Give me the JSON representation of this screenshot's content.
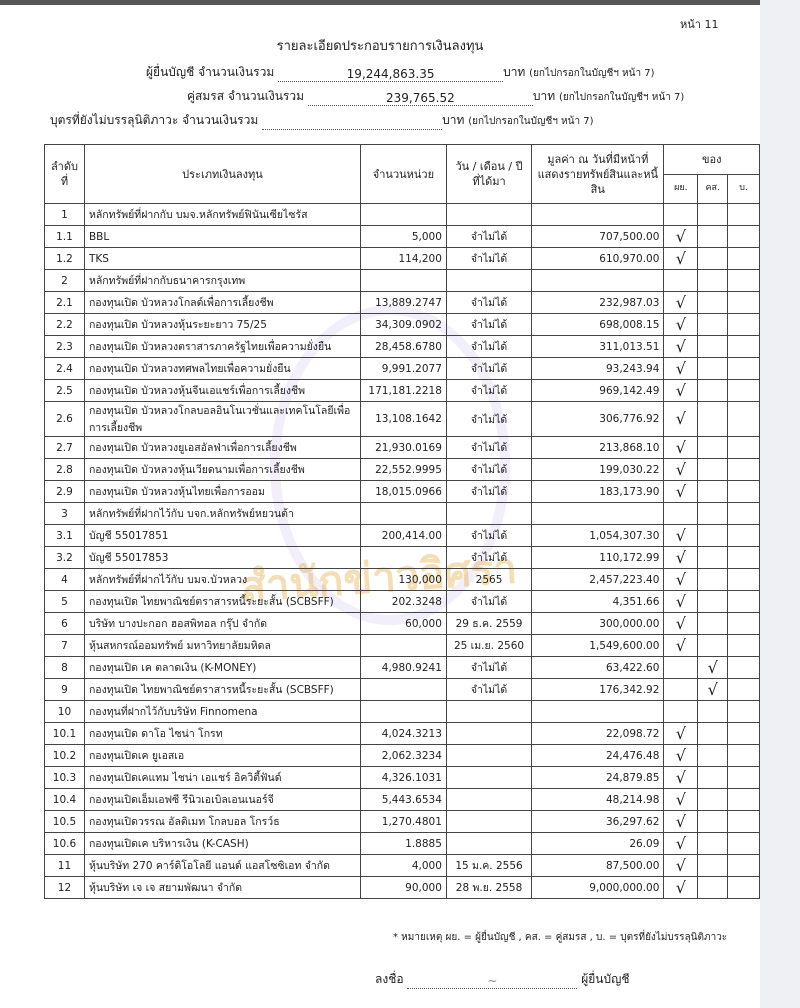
{
  "page_number": "หน้า 11",
  "title": "รายละเอียดประกอบรายการเงินลงทุน",
  "summary": [
    {
      "label": "ผู้ยื่นบัญชี  จำนวนเงินรวม",
      "value": "19,244,863.35",
      "unit": "บาท",
      "note": "(ยกไปกรอกในบัญชีฯ หน้า 7)"
    },
    {
      "label": "คู่สมรส  จำนวนเงินรวม",
      "value": "239,765.52",
      "unit": "บาท",
      "note": "(ยกไปกรอกในบัญชีฯ หน้า 7)"
    },
    {
      "label": "บุตรที่ยังไม่บรรลุนิติภาวะ  จำนวนเงินรวม",
      "value": "",
      "unit": "บาท",
      "note": "(ยกไปกรอกในบัญชีฯ หน้า 7)"
    }
  ],
  "headers": {
    "no": "ลำดับที่",
    "type": "ประเภทเงินลงทุน",
    "units": "จำนวนหน่วย",
    "date": "วัน / เดือน / ปี ที่ได้มา",
    "value": "มูลค่า ณ วันที่มีหน้าที่แสดงรายทรัพย์สินและหนี้สิน",
    "owner": "ของ",
    "owner_cols": [
      "ผย.",
      "คส.",
      "บ."
    ]
  },
  "check_mark": "√",
  "rows": [
    {
      "no": "1",
      "desc": "หลักทรัพย์ที่ฝากกับ บมจ.หลักทรัพย์ฟินันเซียไซรัส",
      "units": "",
      "date": "",
      "value": "",
      "owner": -1
    },
    {
      "no": "1.1",
      "desc": "BBL",
      "units": "5,000",
      "date": "จำไม่ได้",
      "value": "707,500.00",
      "owner": 0
    },
    {
      "no": "1.2",
      "desc": "TKS",
      "units": "114,200",
      "date": "จำไม่ได้",
      "value": "610,970.00",
      "owner": 0
    },
    {
      "no": "2",
      "desc": "หลักทรัพย์ที่ฝากกับธนาคารกรุงเทพ",
      "units": "",
      "date": "",
      "value": "",
      "owner": -1
    },
    {
      "no": "2.1",
      "desc": "กองทุนเปิด บัวหลวงโกลด์เพื่อการเลี้ยงชีพ",
      "units": "13,889.2747",
      "date": "จำไม่ได้",
      "value": "232,987.03",
      "owner": 0
    },
    {
      "no": "2.2",
      "desc": "กองทุนเปิด บัวหลวงหุ้นระยะยาว 75/25",
      "units": "34,309.0902",
      "date": "จำไม่ได้",
      "value": "698,008.15",
      "owner": 0
    },
    {
      "no": "2.3",
      "desc": "กองทุนเปิด บัวหลวงตราสารภาครัฐไทยเพื่อความยั่งยืน",
      "units": "28,458.6780",
      "date": "จำไม่ได้",
      "value": "311,013.51",
      "owner": 0
    },
    {
      "no": "2.4",
      "desc": "กองทุนเปิด บัวหลวงทศพลไทยเพื่อความยั่งยืน",
      "units": "9,991.2077",
      "date": "จำไม่ได้",
      "value": "93,243.94",
      "owner": 0
    },
    {
      "no": "2.5",
      "desc": "กองทุนเปิด บัวหลวงหุ้นจีนเอแชร์เพื่อการเลี้ยงชีพ",
      "units": "171,181.2218",
      "date": "จำไม่ได้",
      "value": "969,142.49",
      "owner": 0
    },
    {
      "no": "2.6",
      "desc": "กองทุนเปิด บัวหลวงโกลบอลอินโนเวชั่นและเทคโนโลยีเพื่อการเลี้ยงชีพ",
      "units": "13,108.1642",
      "date": "จำไม่ได้",
      "value": "306,776.92",
      "owner": 0
    },
    {
      "no": "2.7",
      "desc": "กองทุนเปิด บัวหลวงยูเอสอัลฟ่าเพื่อการเลี้ยงชีพ",
      "units": "21,930.0169",
      "date": "จำไม่ได้",
      "value": "213,868.10",
      "owner": 0
    },
    {
      "no": "2.8",
      "desc": "กองทุนเปิด บัวหลวงหุ้นเวียดนามเพื่อการเลี้ยงชีพ",
      "units": "22,552.9995",
      "date": "จำไม่ได้",
      "value": "199,030.22",
      "owner": 0
    },
    {
      "no": "2.9",
      "desc": "กองทุนเปิด บัวหลวงหุ้นไทยเพื่อการออม",
      "units": "18,015.0966",
      "date": "จำไม่ได้",
      "value": "183,173.90",
      "owner": 0
    },
    {
      "no": "3",
      "desc": "หลักทรัพย์ที่ฝากไว้กับ บจก.หลักทรัพย์หยวนต้า",
      "units": "",
      "date": "",
      "value": "",
      "owner": -1
    },
    {
      "no": "3.1",
      "desc": "บัญชี 55017851",
      "units": "200,414.00",
      "date": "จำไม่ได้",
      "value": "1,054,307.30",
      "owner": 0
    },
    {
      "no": "3.2",
      "desc": "บัญชี 55017853",
      "units": "",
      "date": "จำไม่ได้",
      "value": "110,172.99",
      "owner": 0
    },
    {
      "no": "4",
      "desc": "หลักทรัพย์ที่ฝากไว้กับ บมจ.บัวหลวง",
      "units": "130,000",
      "date": "2565",
      "value": "2,457,223.40",
      "owner": 0
    },
    {
      "no": "5",
      "desc": "กองทุนเปิด ไทยพาณิชย์ตราสารหนี้ระยะสั้น (SCBSFF)",
      "units": "202.3248",
      "date": "จำไม่ได้",
      "value": "4,351.66",
      "owner": 0
    },
    {
      "no": "6",
      "desc": "บริษัท บางปะกอก ฮอสพิทอล กรุ๊ป จำกัด",
      "units": "60,000",
      "date": "29 ธ.ค. 2559",
      "value": "300,000.00",
      "owner": 0
    },
    {
      "no": "7",
      "desc": "หุ้นสหกรณ์ออมทรัพย์ มหาวิทยาลัยมหิดล",
      "units": "",
      "date": "25 เม.ย. 2560",
      "value": "1,549,600.00",
      "owner": 0
    },
    {
      "no": "8",
      "desc": "กองทุนเปิด เค ตลาดเงิน (K-MONEY)",
      "units": "4,980.9241",
      "date": "จำไม่ได้",
      "value": "63,422.60",
      "owner": 1
    },
    {
      "no": "9",
      "desc": "กองทุนเปิด ไทยพาณิชย์ตราสารหนี้ระยะสั้น (SCBSFF)",
      "units": "",
      "date": "จำไม่ได้",
      "value": "176,342.92",
      "owner": 1
    },
    {
      "no": "10",
      "desc": "กองทุนที่ฝากไว้กับบริษัท Finnomena",
      "units": "",
      "date": "",
      "value": "",
      "owner": -1
    },
    {
      "no": "10.1",
      "desc": "กองทุนเปิด ดาโอ ไซน่า โกรท",
      "units": "4,024.3213",
      "date": "",
      "value": "22,098.72",
      "owner": 0
    },
    {
      "no": "10.2",
      "desc": "กองทุนเปิดเค ยูเอสเอ",
      "units": "2,062.3234",
      "date": "",
      "value": "24,476.48",
      "owner": 0
    },
    {
      "no": "10.3",
      "desc": "กองทุนเปิดเคแทม ไชน่า เอแชร์ อิควิตี้ฟันด์",
      "units": "4,326.1031",
      "date": "",
      "value": "24,879.85",
      "owner": 0
    },
    {
      "no": "10.4",
      "desc": "กองทุนเปิดเอ็มเอฟซี รีนิวเอเบิลเอนเนอร์จี",
      "units": "5,443.6534",
      "date": "",
      "value": "48,214.98",
      "owner": 0
    },
    {
      "no": "10.5",
      "desc": "กองทุนเปิดวรรณ อัลติเมท โกลบอล โกรว์ธ",
      "units": "1,270.4801",
      "date": "",
      "value": "36,297.62",
      "owner": 0
    },
    {
      "no": "10.6",
      "desc": "กองทุนเปิดเค บริหารเงิน (K-CASH)",
      "units": "1.8885",
      "date": "",
      "value": "26.09",
      "owner": 0
    },
    {
      "no": "11",
      "desc": "หุ้นบริษัท 270 คาร์ดิโอโลยี แอนด์ แอสโซซิเอท จำกัด",
      "units": "4,000",
      "date": "15 ม.ค. 2556",
      "value": "87,500.00",
      "owner": 0
    },
    {
      "no": "12",
      "desc": "หุ้นบริษัท เจ เจ สยามพัฒนา จำกัด",
      "units": "90,000",
      "date": "28 พ.ย. 2558",
      "value": "9,000,000.00",
      "owner": 0
    }
  ],
  "footnote": "* หมายเหตุ ผย. = ผู้ยื่นบัญชี , คส. = คู่สมรส , บ. = บุตรที่ยังไม่บรรลุนิติภาวะ",
  "signature": {
    "label": "ลงชื่อ",
    "role": "ผู้ยื่นบัญชี"
  },
  "watermark": "สำนักข่าวอิศรา"
}
